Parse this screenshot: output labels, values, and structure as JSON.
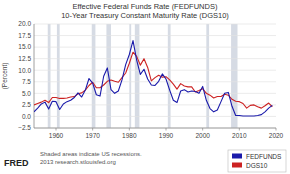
{
  "chart_data": {
    "type": "line",
    "title": "Effective Federal Funds Rate (FEDFUNDS)",
    "subtitle": "10-Year Treasury Constant Maturity Rate (DGS10)",
    "ylabel": "(Percent)",
    "annotations": [
      "FRED",
      "Shaded areas indicate US recessions.",
      "2013 research.stlouisfed.org"
    ],
    "xlim": [
      1954,
      2020
    ],
    "xticks": [
      1960,
      1970,
      1980,
      1990,
      2000,
      2010,
      2020
    ],
    "ylim": [
      -2.5,
      20.0
    ],
    "yticks": [
      {
        "value": -2.5,
        "label": "−2.5"
      },
      {
        "value": 0.0,
        "label": "0.0"
      },
      2.5,
      {
        "value": 5.0,
        "label": "5.0"
      },
      7.5,
      {
        "value": 10.0,
        "label": "10.0"
      },
      12.5,
      {
        "value": 15.0,
        "label": "15.0"
      },
      17.5,
      {
        "value": 20.0,
        "label": "20.0"
      }
    ],
    "grid": true,
    "legend": "lower right",
    "recessions": [
      [
        1957.75,
        1958.5
      ],
      [
        1960.25,
        1961.0
      ],
      [
        1969.75,
        1970.75
      ],
      [
        1973.75,
        1975.0
      ],
      [
        1980.0,
        1980.5
      ],
      [
        1981.5,
        1982.75
      ],
      [
        1990.5,
        1991.25
      ],
      [
        2001.0,
        2001.75
      ],
      [
        2007.75,
        2009.5
      ]
    ],
    "x": [
      1954,
      1955,
      1956,
      1957,
      1958,
      1959,
      1960,
      1961,
      1962,
      1963,
      1964,
      1965,
      1966,
      1967,
      1968,
      1969,
      1970,
      1971,
      1972,
      1973,
      1974,
      1975,
      1976,
      1977,
      1978,
      1979,
      1980,
      1981,
      1982,
      1983,
      1984,
      1985,
      1986,
      1987,
      1988,
      1989,
      1990,
      1991,
      1992,
      1993,
      1994,
      1995,
      1996,
      1997,
      1998,
      1999,
      2000,
      2001,
      2002,
      2003,
      2004,
      2005,
      2006,
      2007,
      2008,
      2009,
      2010,
      2011,
      2012,
      2013,
      2014,
      2015,
      2016,
      2017,
      2018,
      2019
    ],
    "series": [
      {
        "name": "FEDFUNDS",
        "color": "#1a1aaa",
        "values": [
          1.0,
          1.8,
          2.7,
          3.1,
          1.6,
          3.3,
          3.2,
          1.5,
          2.7,
          3.2,
          3.5,
          4.1,
          5.1,
          4.2,
          5.7,
          8.2,
          7.2,
          4.7,
          4.4,
          8.7,
          10.5,
          5.8,
          5.0,
          5.5,
          7.9,
          11.2,
          13.4,
          16.4,
          12.2,
          9.1,
          10.2,
          8.1,
          6.8,
          6.7,
          7.6,
          9.2,
          8.1,
          5.7,
          3.5,
          3.0,
          5.5,
          5.8,
          5.3,
          5.5,
          5.4,
          5.0,
          6.5,
          3.5,
          1.7,
          1.0,
          1.4,
          3.2,
          5.0,
          5.2,
          2.2,
          0.2,
          0.2,
          0.1,
          0.1,
          0.1,
          0.1,
          0.2,
          0.4,
          1.0,
          1.8,
          2.4
        ]
      },
      {
        "name": "DGS10",
        "color": "#cc2222",
        "values": [
          2.5,
          2.8,
          3.1,
          3.5,
          3.0,
          4.1,
          4.1,
          3.9,
          3.9,
          4.0,
          4.2,
          4.3,
          4.9,
          5.1,
          5.7,
          6.7,
          7.4,
          6.2,
          6.2,
          6.8,
          7.6,
          7.9,
          7.6,
          7.4,
          8.4,
          9.4,
          11.5,
          13.9,
          13.0,
          11.1,
          12.5,
          10.6,
          7.7,
          8.4,
          8.9,
          8.5,
          8.6,
          7.9,
          7.0,
          5.9,
          7.1,
          6.6,
          6.4,
          6.4,
          5.3,
          5.6,
          6.0,
          5.0,
          4.6,
          4.0,
          4.3,
          4.3,
          4.8,
          4.6,
          3.7,
          3.3,
          3.2,
          2.8,
          1.8,
          2.4,
          2.5,
          2.1,
          1.8,
          2.3,
          2.9,
          2.1
        ]
      }
    ]
  }
}
